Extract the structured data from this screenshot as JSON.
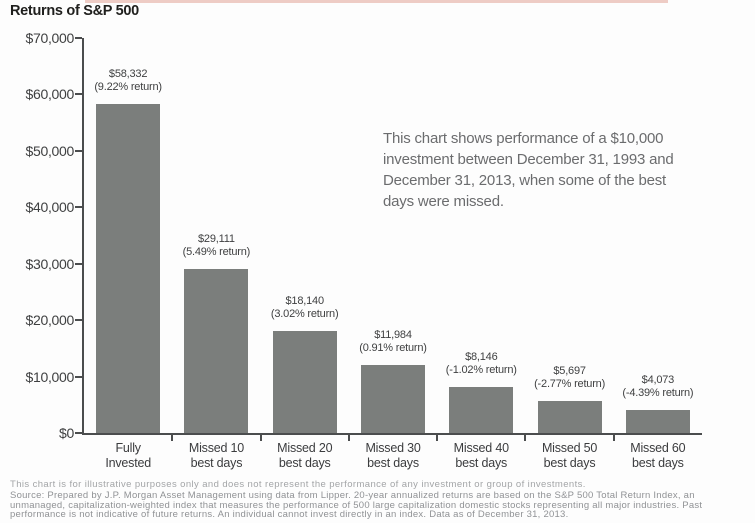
{
  "page": {
    "background": "#fdfdfd",
    "accent_strip_color": "#eeccc5"
  },
  "annotation": {
    "text": "This chart shows performance of a $10,000 investment between December 31, 1993 and December 31, 2013, when some of the best days were missed."
  },
  "chart_data": {
    "type": "bar",
    "title": "Returns of S&P 500",
    "categories": [
      "Fully Invested",
      "Missed 10 best days",
      "Missed 20 best days",
      "Missed 30 best days",
      "Missed 40 best days",
      "Missed 50 best days",
      "Missed 60 best days"
    ],
    "category_lines": [
      [
        "Fully",
        "Invested"
      ],
      [
        "Missed 10",
        "best days"
      ],
      [
        "Missed 20",
        "best days"
      ],
      [
        "Missed 30",
        "best days"
      ],
      [
        "Missed 40",
        "best days"
      ],
      [
        "Missed 50",
        "best days"
      ],
      [
        "Missed 60",
        "best days"
      ]
    ],
    "values": [
      58332,
      29111,
      18140,
      11984,
      8146,
      5697,
      4073
    ],
    "value_labels": [
      "$58,332",
      "$29,111",
      "$18,140",
      "$11,984",
      "$8,146",
      "$5,697",
      "$4,073"
    ],
    "return_labels": [
      "(9.22% return)",
      "(5.49% return)",
      "(3.02% return)",
      "(0.91% return)",
      "(-1.02% return)",
      "(-2.77% return)",
      "(-4.39% return)"
    ],
    "xlabel": "",
    "ylabel": "",
    "ylim": [
      0,
      70000
    ],
    "y_tick_step": 10000,
    "y_tick_labels": [
      "$70,000",
      "$60,000",
      "$50,000",
      "$40,000",
      "$30,000",
      "$20,000",
      "$10,000",
      "$0"
    ],
    "grid": false,
    "legend": false,
    "bar_color": "#7b7e7c",
    "axis_color": "#4b4d4e"
  },
  "footer": {
    "disclaimer": "This chart is for illustrative purposes only and does not represent the performance of any investment or group of investments.",
    "source": "Source: Prepared by J.P. Morgan Asset Management using data from Lipper. 20-year annualized returns are based on the S&P 500 Total Return Index, an unmanaged, capitalization-weighted index that measures the performance of 500 large capitalization domestic stocks representing all major industries. Past performance is not indicative of future returns. An individual cannot invest directly in an index. Data as of December 31, 2013."
  }
}
